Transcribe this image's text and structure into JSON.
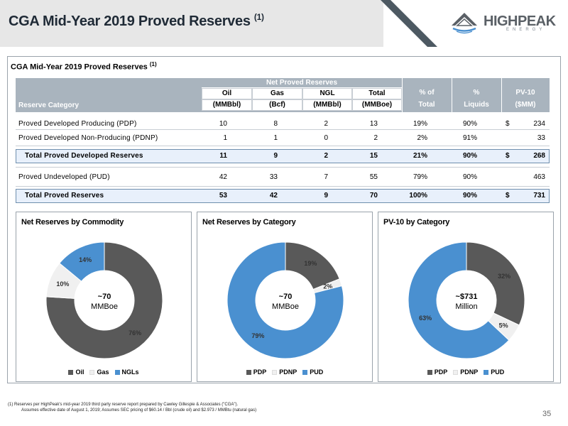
{
  "header": {
    "title": "CGA Mid-Year 2019 Proved Reserves",
    "title_sup": "(1)"
  },
  "logo": {
    "name": "HIGHPEAK",
    "sub": "ENERGY"
  },
  "section": {
    "title": "CGA Mid-Year 2019 Proved Reserves",
    "title_sup": "(1)"
  },
  "table": {
    "group_header": "Net Proved Reserves",
    "col_category": "Reserve Category",
    "cols": [
      {
        "top": "Oil",
        "unit": "(MMBbl)"
      },
      {
        "top": "Gas",
        "unit": "(Bcf)"
      },
      {
        "top": "NGL",
        "unit": "(MMBbl)"
      },
      {
        "top": "Total",
        "unit": "(MMBoe)"
      }
    ],
    "extra_cols": [
      {
        "top": "% of",
        "bottom": "Total"
      },
      {
        "top": "%",
        "bottom": "Liquids"
      },
      {
        "top": "PV-10",
        "bottom": "($MM)"
      }
    ],
    "rows": [
      {
        "label": "Proved Developed Producing (PDP)",
        "oil": "10",
        "gas": "8",
        "ngl": "2",
        "total": "13",
        "pct_total": "19%",
        "pct_liquids": "90%",
        "dollar": "$",
        "pv10": "234",
        "is_total": false
      },
      {
        "label": "Proved Developed Non-Producing (PDNP)",
        "oil": "1",
        "gas": "1",
        "ngl": "0",
        "total": "2",
        "pct_total": "2%",
        "pct_liquids": "91%",
        "dollar": "",
        "pv10": "33",
        "is_total": false
      },
      {
        "label": "Total Proved Developed Reserves",
        "oil": "11",
        "gas": "9",
        "ngl": "2",
        "total": "15",
        "pct_total": "21%",
        "pct_liquids": "90%",
        "dollar": "$",
        "pv10": "268",
        "is_total": true
      },
      {
        "label": "Proved Undeveloped (PUD)",
        "oil": "42",
        "gas": "33",
        "ngl": "7",
        "total": "55",
        "pct_total": "79%",
        "pct_liquids": "90%",
        "dollar": "",
        "pv10": "463",
        "is_total": false
      },
      {
        "label": "Total Proved Reserves",
        "oil": "53",
        "gas": "42",
        "ngl": "9",
        "total": "70",
        "pct_total": "100%",
        "pct_liquids": "90%",
        "dollar": "$",
        "pv10": "731",
        "is_total": true
      }
    ]
  },
  "chart_data": [
    {
      "type": "pie",
      "title": "Net Reserves by Commodity",
      "center_label": [
        "~70",
        "MMBoe"
      ],
      "categories": [
        "Oil",
        "Gas",
        "NGLs"
      ],
      "values": [
        76,
        10,
        14
      ],
      "value_labels": [
        "76%",
        "10%",
        "14%"
      ],
      "colors": [
        "#595959",
        "#f0f0f0",
        "#4a90d0"
      ],
      "legend": "bottom"
    },
    {
      "type": "pie",
      "title": "Net Reserves by Category",
      "center_label": [
        "~70",
        "MMBoe"
      ],
      "categories": [
        "PDP",
        "PDNP",
        "PUD"
      ],
      "values": [
        19,
        2,
        79
      ],
      "value_labels": [
        "19%",
        "2%",
        "79%"
      ],
      "colors": [
        "#595959",
        "#f0f0f0",
        "#4a90d0"
      ],
      "legend": "bottom"
    },
    {
      "type": "pie",
      "title": "PV-10 by Category",
      "center_label": [
        "~$731",
        "Million"
      ],
      "categories": [
        "PDP",
        "PDNP",
        "PUD"
      ],
      "values": [
        32,
        5,
        63
      ],
      "value_labels": [
        "32%",
        "5%",
        "63%"
      ],
      "colors": [
        "#595959",
        "#f0f0f0",
        "#4a90d0"
      ],
      "legend": "bottom"
    }
  ],
  "footnote": {
    "line1": "(1) Reserves per HighPeak's mid-year 2019 third party reserve report prepared by Cawley Gillespie & Associates (\"CGA\").",
    "line2": "Assumes effective date of August 1, 2019; Assumes SEC pricing of $60.14 / Bbl (crude oil) and $2.973 / MMBtu (natural gas)"
  },
  "page_number": "35"
}
